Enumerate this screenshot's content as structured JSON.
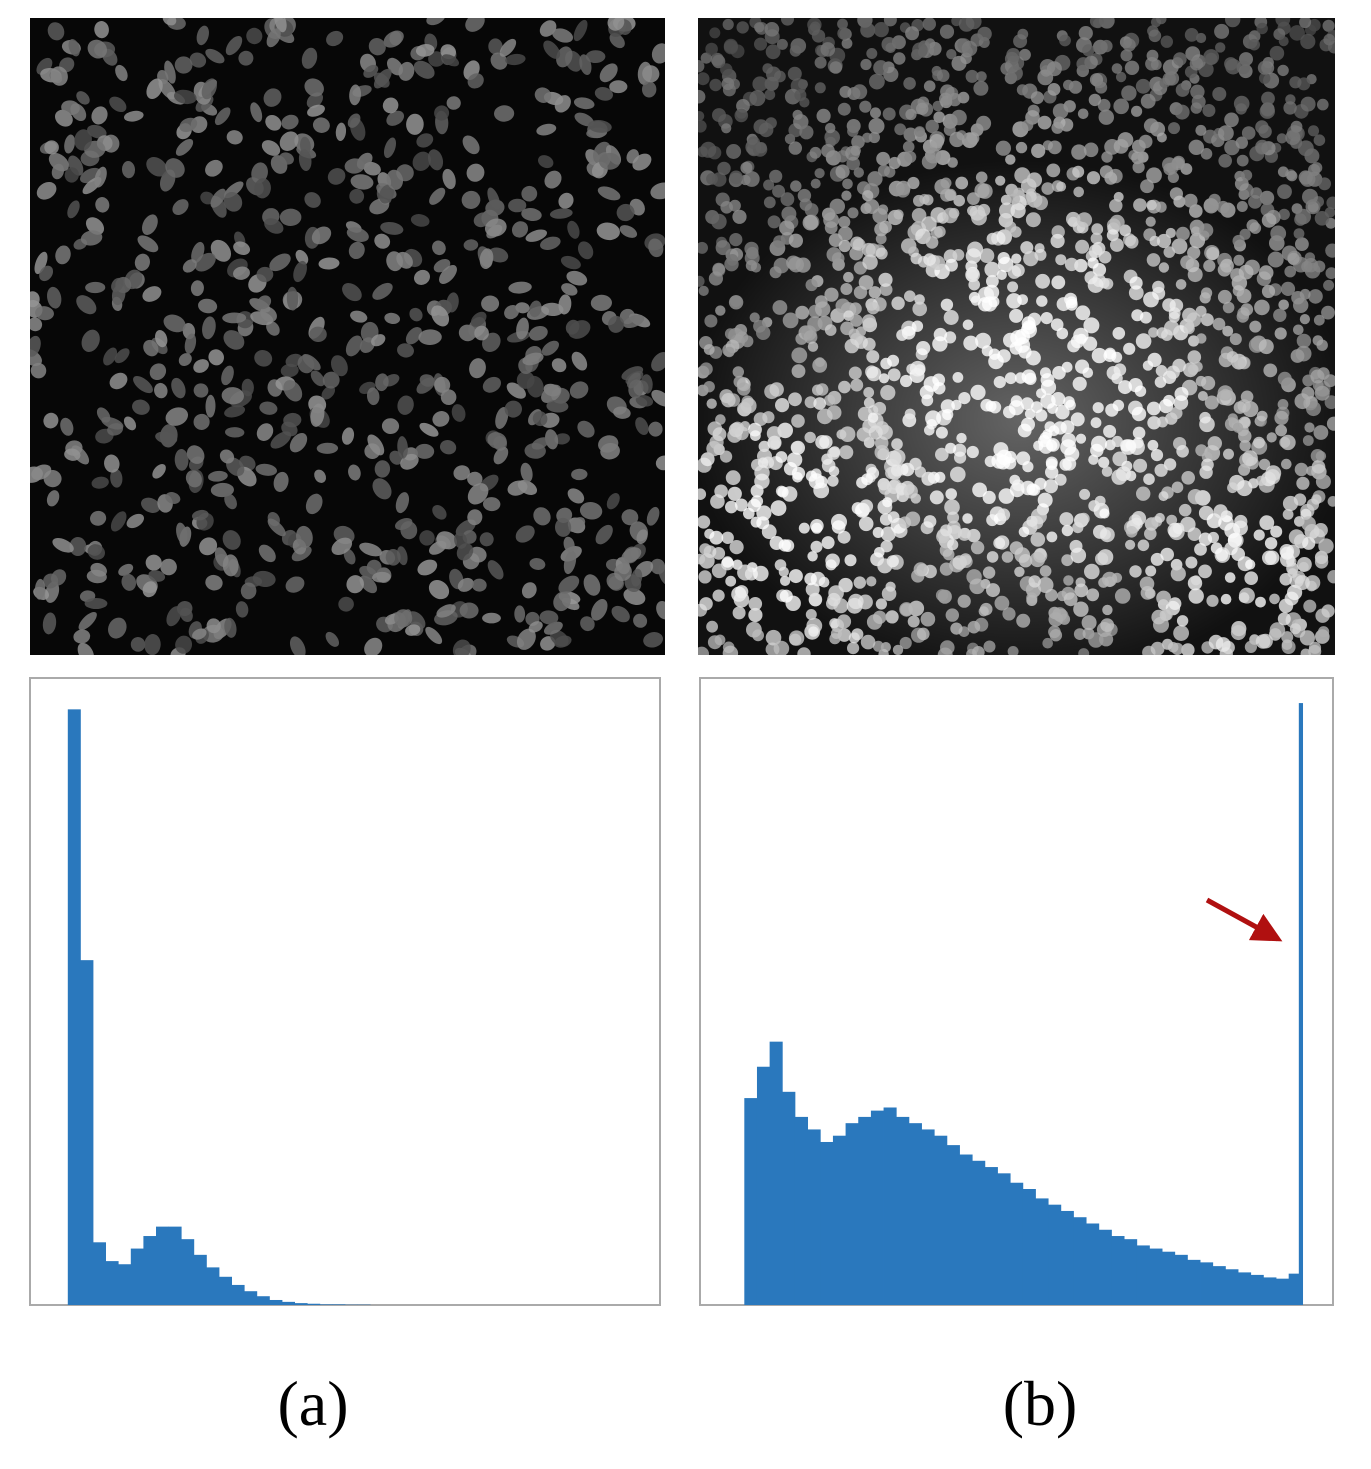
{
  "panel_labels": [
    "(a)",
    "(b)"
  ],
  "chart_data": [
    {
      "type": "histogram",
      "color": "#2a78bd",
      "xlim": [
        0,
        100
      ],
      "ylim": [
        0,
        100
      ],
      "bins": [
        6,
        8,
        10,
        12,
        14,
        16,
        18,
        20,
        22,
        24,
        26,
        28,
        30,
        32,
        34,
        36,
        38,
        40,
        42,
        44,
        46,
        48,
        50,
        52,
        54
      ],
      "values": [
        95,
        55,
        10,
        7,
        6.5,
        9,
        11,
        12.5,
        12.5,
        10.5,
        8,
        6,
        4.5,
        3.2,
        2.2,
        1.4,
        0.8,
        0.5,
        0.3,
        0.2,
        0.1,
        0.1,
        0.05,
        0.05
      ]
    },
    {
      "type": "histogram",
      "color": "#2a78bd",
      "xlim": [
        0,
        100
      ],
      "ylim": [
        0,
        100
      ],
      "bins": [
        7,
        9,
        11,
        13,
        15,
        17,
        19,
        21,
        23,
        25,
        27,
        29,
        31,
        33,
        35,
        37,
        39,
        41,
        43,
        45,
        47,
        49,
        51,
        53,
        55,
        57,
        59,
        61,
        63,
        65,
        67,
        69,
        71,
        73,
        75,
        77,
        79,
        81,
        83,
        85,
        87,
        89,
        91,
        93,
        94.6,
        95.2
      ],
      "values": [
        33,
        38,
        42,
        34,
        30,
        28,
        26,
        27,
        29,
        30,
        31,
        31.5,
        30,
        29,
        28,
        27,
        25.5,
        24,
        23,
        22,
        21,
        19.5,
        18.5,
        17,
        16,
        15,
        14,
        13,
        12,
        11,
        10.5,
        9.5,
        9,
        8.5,
        8,
        7.2,
        6.8,
        6.2,
        5.7,
        5.2,
        4.8,
        4.4,
        4.2,
        5,
        96
      ]
    }
  ]
}
